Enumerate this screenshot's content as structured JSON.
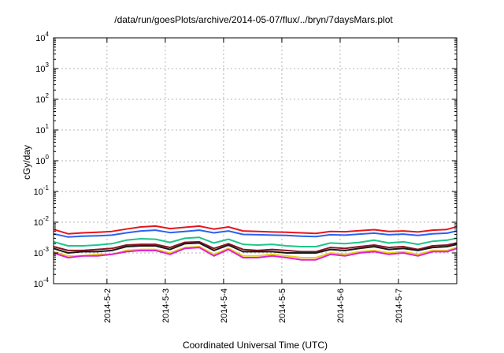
{
  "chart_data": {
    "type": "line",
    "title": "/data/run/goesPlots/archive/2014-05-07/flux/../bryn/7daysMars.plot",
    "xlabel": "Coordinated Universal Time (UTC)",
    "ylabel": "cGy/day",
    "yscale": "log",
    "ylim": [
      0.0001,
      10000
    ],
    "ytick_labels": [
      {
        "base": "10",
        "exp": "-4",
        "value": 0.0001
      },
      {
        "base": "10",
        "exp": "-3",
        "value": 0.001
      },
      {
        "base": "10",
        "exp": "-2",
        "value": 0.01
      },
      {
        "base": "10",
        "exp": "-1",
        "value": 0.1
      },
      {
        "base": "10",
        "exp": "0",
        "value": 1
      },
      {
        "base": "10",
        "exp": "1",
        "value": 10
      },
      {
        "base": "10",
        "exp": "2",
        "value": 100
      },
      {
        "base": "10",
        "exp": "3",
        "value": 1000
      },
      {
        "base": "10",
        "exp": "4",
        "value": 10000
      }
    ],
    "xlim": [
      "2014-05-01T02:00",
      "2014-05-08T00:00"
    ],
    "xtick_labels": [
      {
        "label": "2014-5-2",
        "value": "2014-05-02"
      },
      {
        "label": "2014-5-3",
        "value": "2014-05-03"
      },
      {
        "label": "2014-5-4",
        "value": "2014-05-04"
      },
      {
        "label": "2014-5-5",
        "value": "2014-05-05"
      },
      {
        "label": "2014-5-6",
        "value": "2014-05-06"
      },
      {
        "label": "2014-5-7",
        "value": "2014-05-07"
      }
    ],
    "grid": true,
    "x": [
      "2014-05-01T02:00",
      "2014-05-01T08:00",
      "2014-05-01T14:00",
      "2014-05-01T20:00",
      "2014-05-02T02:00",
      "2014-05-02T08:00",
      "2014-05-02T14:00",
      "2014-05-02T20:00",
      "2014-05-03T02:00",
      "2014-05-03T08:00",
      "2014-05-03T14:00",
      "2014-05-03T20:00",
      "2014-05-04T02:00",
      "2014-05-04T08:00",
      "2014-05-04T14:00",
      "2014-05-04T20:00",
      "2014-05-05T02:00",
      "2014-05-05T08:00",
      "2014-05-05T14:00",
      "2014-05-05T20:00",
      "2014-05-06T02:00",
      "2014-05-06T08:00",
      "2014-05-06T14:00",
      "2014-05-06T20:00",
      "2014-05-07T02:00",
      "2014-05-07T08:00",
      "2014-05-07T14:00",
      "2014-05-07T20:00",
      "2014-05-08T00:00"
    ],
    "series": [
      {
        "color": "#e8141c",
        "values": [
          0.0058,
          0.0042,
          0.0045,
          0.0047,
          0.005,
          0.006,
          0.007,
          0.0075,
          0.0062,
          0.0068,
          0.0075,
          0.006,
          0.007,
          0.0052,
          0.005,
          0.0048,
          0.0047,
          0.0045,
          0.0043,
          0.005,
          0.0049,
          0.0053,
          0.0057,
          0.005,
          0.0052,
          0.0048,
          0.0055,
          0.0058,
          0.0072
        ]
      },
      {
        "color": "#2a62f0",
        "values": [
          0.0042,
          0.0033,
          0.0035,
          0.0036,
          0.0038,
          0.0045,
          0.0052,
          0.0055,
          0.0046,
          0.005,
          0.0055,
          0.0045,
          0.0052,
          0.004,
          0.0039,
          0.0038,
          0.0037,
          0.0035,
          0.0034,
          0.0039,
          0.0038,
          0.0041,
          0.0044,
          0.0039,
          0.0041,
          0.0037,
          0.0042,
          0.0044,
          0.0052
        ]
      },
      {
        "color": "#1fc48a",
        "values": [
          0.0023,
          0.0017,
          0.0017,
          0.0018,
          0.002,
          0.0026,
          0.0029,
          0.0028,
          0.0022,
          0.003,
          0.0032,
          0.0021,
          0.0028,
          0.0019,
          0.0018,
          0.0019,
          0.0017,
          0.0016,
          0.0016,
          0.0021,
          0.002,
          0.0022,
          0.0026,
          0.0021,
          0.0023,
          0.0019,
          0.0024,
          0.0026,
          0.003
        ]
      },
      {
        "color": "#8a1426",
        "values": [
          0.0016,
          0.0012,
          0.0012,
          0.0013,
          0.0014,
          0.0018,
          0.0019,
          0.0019,
          0.0015,
          0.0022,
          0.0023,
          0.0014,
          0.002,
          0.0013,
          0.0012,
          0.0013,
          0.0012,
          0.0011,
          0.0011,
          0.0015,
          0.0014,
          0.0016,
          0.0018,
          0.0015,
          0.0016,
          0.0013,
          0.0017,
          0.0018,
          0.0021
        ]
      },
      {
        "color": "#1a1a1a",
        "values": [
          0.0014,
          0.001,
          0.0011,
          0.0011,
          0.0012,
          0.0016,
          0.0017,
          0.0017,
          0.0013,
          0.002,
          0.0021,
          0.0012,
          0.0018,
          0.0011,
          0.0011,
          0.0011,
          0.001,
          0.001,
          0.001,
          0.0013,
          0.0012,
          0.0014,
          0.0016,
          0.0013,
          0.0014,
          0.0012,
          0.0015,
          0.0016,
          0.0019
        ]
      },
      {
        "color": "#e8d020",
        "values": [
          0.0011,
          0.0008,
          0.0008,
          0.0009,
          0.0009,
          0.0012,
          0.0013,
          0.0013,
          0.001,
          0.0015,
          0.0016,
          0.0009,
          0.0014,
          0.0008,
          0.0008,
          0.0009,
          0.0008,
          0.0007,
          0.0007,
          0.001,
          0.0009,
          0.0011,
          0.0012,
          0.001,
          0.0011,
          0.0009,
          0.0012,
          0.0012,
          0.0015
        ]
      },
      {
        "color": "#e020d0",
        "values": [
          0.001,
          0.0007,
          0.0008,
          0.0008,
          0.0009,
          0.0011,
          0.0012,
          0.0012,
          0.0009,
          0.0014,
          0.0015,
          0.0008,
          0.0013,
          0.0007,
          0.0007,
          0.0008,
          0.0007,
          0.0006,
          0.0006,
          0.0009,
          0.0008,
          0.001,
          0.0011,
          0.0009,
          0.001,
          0.0008,
          0.0011,
          0.0011,
          0.0014
        ]
      }
    ]
  }
}
